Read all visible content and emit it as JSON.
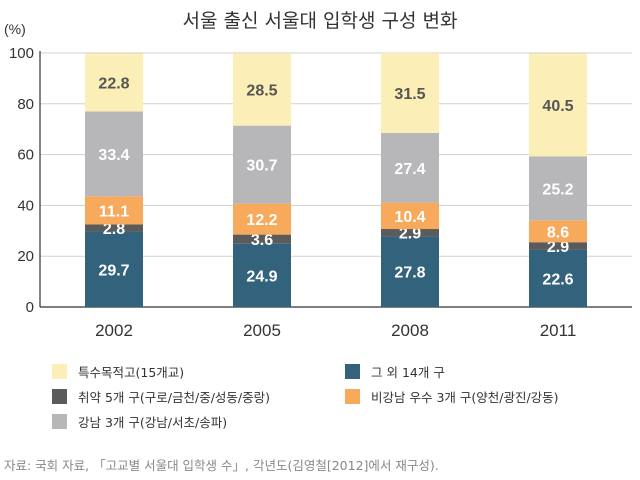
{
  "chart_data": {
    "type": "bar",
    "stacked": true,
    "title": "서울 출신 서울대 입학생 구성 변화",
    "ylabel": "(%)",
    "ylim": [
      0,
      100
    ],
    "yticks": [
      "0",
      "20",
      "40",
      "60",
      "80",
      "100"
    ],
    "categories": [
      "2002",
      "2005",
      "2008",
      "2011"
    ],
    "series": [
      {
        "name": "그 외 14개 구",
        "color": "#33627d",
        "label_color": "#ffffff",
        "values": [
          29.7,
          24.9,
          27.8,
          22.6
        ],
        "labels": [
          "29.7",
          "24.9",
          "27.8",
          "22.6"
        ]
      },
      {
        "name": "취약 5개 구(구로/금천/중/성동/중랑)",
        "color": "#5b5b5b",
        "label_color": "#ffffff",
        "values": [
          2.8,
          3.6,
          2.9,
          2.9
        ],
        "labels": [
          "2.8",
          "3.6",
          "2.9",
          "2.9"
        ]
      },
      {
        "name": "비강남 우수 3개 구(양천/광진/강동)",
        "color": "#f7a95c",
        "label_color": "#ffffff",
        "values": [
          11.1,
          12.2,
          10.4,
          8.6
        ],
        "labels": [
          "11.1",
          "12.2",
          "10.4",
          "8.6"
        ]
      },
      {
        "name": "강남 3개 구(강남/서초/송파)",
        "color": "#b7b7b9",
        "label_color": "#ffffff",
        "values": [
          33.4,
          30.7,
          27.4,
          25.2
        ],
        "labels": [
          "33.4",
          "30.7",
          "27.4",
          "25.2"
        ]
      },
      {
        "name": "특수목적고(15개교)",
        "color": "#fbefb7",
        "label_color": "#555555",
        "values": [
          22.8,
          28.5,
          31.5,
          40.5
        ],
        "labels": [
          "22.8",
          "28.5",
          "31.5",
          "40.5"
        ]
      }
    ],
    "legend_order": [
      4,
      1,
      3,
      0,
      2
    ],
    "source": "자료: 국회 자료, 「고교별 서울대 입학생 수」, 각년도(김영철[2012]에서 재구성)."
  }
}
